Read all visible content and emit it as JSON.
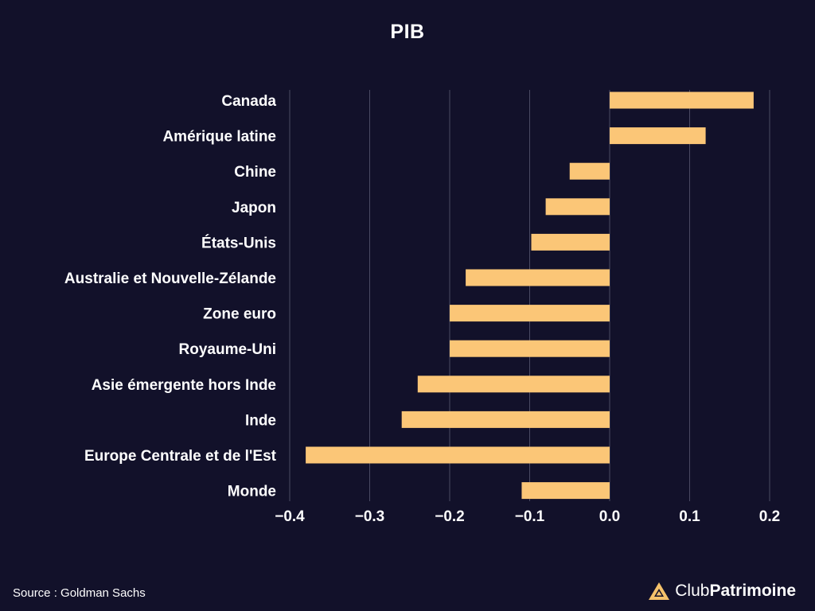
{
  "chart_data": {
    "type": "bar",
    "orientation": "horizontal",
    "title": "PIB",
    "categories": [
      "Canada",
      "Amérique latine",
      "Chine",
      "Japon",
      "États-Unis",
      "Australie et Nouvelle-Zélande",
      "Zone euro",
      "Royaume-Uni",
      "Asie émergente hors Inde",
      "Inde",
      "Europe Centrale et de l'Est",
      "Monde"
    ],
    "values": [
      0.18,
      0.12,
      -0.05,
      -0.08,
      -0.098,
      -0.18,
      -0.2,
      -0.2,
      -0.24,
      -0.26,
      -0.38,
      -0.11
    ],
    "xlim": [
      -0.4,
      0.2
    ],
    "xticks": [
      -0.4,
      -0.3,
      -0.2,
      -0.1,
      0.0,
      0.1,
      0.2
    ],
    "xtick_labels": [
      "−0.4",
      "−0.3",
      "−0.2",
      "−0.1",
      "0.0",
      "0.1",
      "0.2"
    ],
    "xlabel": "",
    "ylabel": "",
    "grid": "vertical",
    "bar_color": "#fbc677",
    "grid_color": "#4a4a63"
  },
  "footer": {
    "source": "Source : Goldman Sachs",
    "brand_club": "Club",
    "brand_patrimoine": "Patrimoine",
    "brand_logo_color": "#f5c26b"
  }
}
